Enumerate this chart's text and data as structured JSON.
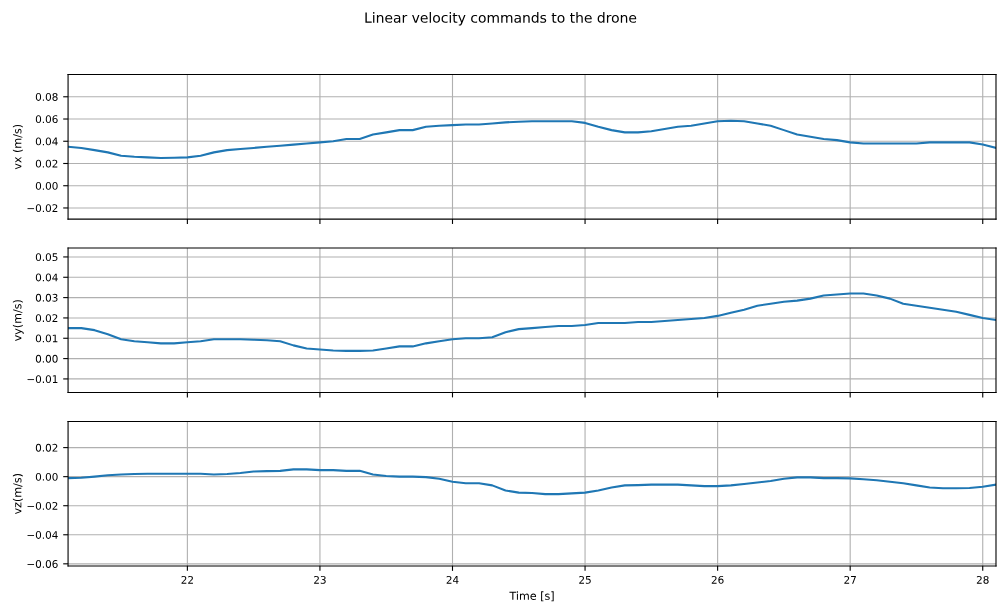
{
  "chart_data": [
    {
      "type": "line",
      "title": "Linear velocity commands to the drone",
      "ylabel": "vx (m/s)",
      "tick_labels": "y",
      "grid": true,
      "x": [
        21.1,
        21.2,
        21.3,
        21.4,
        21.5,
        21.6,
        21.7,
        21.8,
        21.9,
        22.0,
        22.1,
        22.2,
        22.3,
        22.4,
        22.5,
        22.6,
        22.7,
        22.8,
        22.9,
        23.0,
        23.1,
        23.2,
        23.3,
        23.4,
        23.5,
        23.6,
        23.7,
        23.8,
        23.9,
        24.0,
        24.1,
        24.2,
        24.3,
        24.4,
        24.5,
        24.6,
        24.7,
        24.8,
        24.9,
        25.0,
        25.1,
        25.2,
        25.3,
        25.4,
        25.5,
        25.6,
        25.7,
        25.8,
        25.9,
        26.0,
        26.1,
        26.2,
        26.3,
        26.4,
        26.5,
        26.6,
        26.7,
        26.8,
        26.9,
        27.0,
        27.1,
        27.2,
        27.3,
        27.4,
        27.5,
        27.6,
        27.7,
        27.8,
        27.9,
        28.0,
        28.1
      ],
      "series": [
        {
          "color": "#1f77b4",
          "values": [
            0.035,
            0.034,
            0.032,
            0.03,
            0.027,
            0.026,
            0.0255,
            0.025,
            0.0252,
            0.0255,
            0.027,
            0.03,
            0.032,
            0.033,
            0.034,
            0.035,
            0.036,
            0.037,
            0.038,
            0.039,
            0.04,
            0.042,
            0.042,
            0.046,
            0.048,
            0.05,
            0.05,
            0.053,
            0.054,
            0.0545,
            0.055,
            0.055,
            0.056,
            0.057,
            0.0575,
            0.058,
            0.058,
            0.058,
            0.058,
            0.0565,
            0.053,
            0.05,
            0.048,
            0.048,
            0.049,
            0.051,
            0.053,
            0.054,
            0.056,
            0.058,
            0.0585,
            0.058,
            0.056,
            0.054,
            0.05,
            0.046,
            0.044,
            0.042,
            0.041,
            0.039,
            0.038,
            0.038,
            0.038,
            0.038,
            0.038,
            0.039,
            0.039,
            0.039,
            0.039,
            0.037,
            0.034
          ]
        }
      ],
      "xlim": [
        21.1,
        28.1
      ],
      "xticks": [
        22,
        23,
        24,
        25,
        26,
        27,
        28
      ],
      "ylim": [
        -0.03,
        0.1
      ],
      "yticks": [
        {
          "value": -0.02,
          "label": "−0.02"
        },
        {
          "value": 0,
          "label": "0.00"
        },
        {
          "value": 0.02,
          "label": "0.02"
        },
        {
          "value": 0.04,
          "label": "0.04"
        },
        {
          "value": 0.06,
          "label": "0.06"
        },
        {
          "value": 0.08,
          "label": "0.08"
        }
      ]
    },
    {
      "type": "line",
      "ylabel": "vy(m/s)",
      "tick_labels": "y",
      "grid": true,
      "x": [
        21.1,
        21.2,
        21.3,
        21.4,
        21.5,
        21.6,
        21.7,
        21.8,
        21.9,
        22.0,
        22.1,
        22.2,
        22.3,
        22.4,
        22.5,
        22.6,
        22.7,
        22.8,
        22.9,
        23.0,
        23.1,
        23.2,
        23.3,
        23.4,
        23.5,
        23.6,
        23.7,
        23.8,
        23.9,
        24.0,
        24.1,
        24.2,
        24.3,
        24.4,
        24.5,
        24.6,
        24.7,
        24.8,
        24.9,
        25.0,
        25.1,
        25.2,
        25.3,
        25.4,
        25.5,
        25.6,
        25.7,
        25.8,
        25.9,
        26.0,
        26.1,
        26.2,
        26.3,
        26.4,
        26.5,
        26.6,
        26.7,
        26.8,
        26.9,
        27.0,
        27.1,
        27.2,
        27.3,
        27.4,
        27.5,
        27.6,
        27.7,
        27.8,
        27.9,
        28.0,
        28.1
      ],
      "series": [
        {
          "color": "#1f77b4",
          "values": [
            0.015,
            0.015,
            0.014,
            0.012,
            0.0095,
            0.0085,
            0.008,
            0.0075,
            0.0075,
            0.008,
            0.0085,
            0.0095,
            0.0095,
            0.0095,
            0.0093,
            0.009,
            0.0085,
            0.0065,
            0.005,
            0.0045,
            0.004,
            0.0038,
            0.0038,
            0.004,
            0.005,
            0.006,
            0.006,
            0.0075,
            0.0085,
            0.0095,
            0.01,
            0.01,
            0.0105,
            0.013,
            0.0145,
            0.015,
            0.0155,
            0.016,
            0.016,
            0.0165,
            0.0175,
            0.0175,
            0.0175,
            0.018,
            0.018,
            0.0185,
            0.019,
            0.0195,
            0.02,
            0.021,
            0.0225,
            0.024,
            0.026,
            0.027,
            0.028,
            0.0285,
            0.0295,
            0.031,
            0.0315,
            0.032,
            0.032,
            0.031,
            0.0295,
            0.027,
            0.026,
            0.025,
            0.024,
            0.023,
            0.0215,
            0.02,
            0.019
          ]
        }
      ],
      "xlim": [
        21.1,
        28.1
      ],
      "xticks": [
        22,
        23,
        24,
        25,
        26,
        27,
        28
      ],
      "ylim": [
        -0.0167,
        0.0544
      ],
      "yticks": [
        {
          "value": -0.01,
          "label": "−0.01"
        },
        {
          "value": 0,
          "label": "0.00"
        },
        {
          "value": 0.01,
          "label": "0.01"
        },
        {
          "value": 0.02,
          "label": "0.02"
        },
        {
          "value": 0.03,
          "label": "0.03"
        },
        {
          "value": 0.04,
          "label": "0.04"
        },
        {
          "value": 0.05,
          "label": "0.05"
        }
      ]
    },
    {
      "type": "line",
      "xlabel": "Time [s]",
      "ylabel": "vz(m/s)",
      "grid": true,
      "x": [
        21.1,
        21.2,
        21.3,
        21.4,
        21.5,
        21.6,
        21.7,
        21.8,
        21.9,
        22.0,
        22.1,
        22.2,
        22.3,
        22.4,
        22.5,
        22.6,
        22.7,
        22.8,
        22.9,
        23.0,
        23.1,
        23.2,
        23.3,
        23.4,
        23.5,
        23.6,
        23.7,
        23.8,
        23.9,
        24.0,
        24.1,
        24.2,
        24.3,
        24.4,
        24.5,
        24.6,
        24.7,
        24.8,
        24.9,
        25.0,
        25.1,
        25.2,
        25.3,
        25.4,
        25.5,
        25.6,
        25.7,
        25.8,
        25.9,
        26.0,
        26.1,
        26.2,
        26.3,
        26.4,
        26.5,
        26.6,
        26.7,
        26.8,
        26.9,
        27.0,
        27.1,
        27.2,
        27.3,
        27.4,
        27.5,
        27.6,
        27.7,
        27.8,
        27.9,
        28.0,
        28.1
      ],
      "series": [
        {
          "color": "#1f77b4",
          "values": [
            -0.001,
            -0.0008,
            0,
            0.001,
            0.0015,
            0.0018,
            0.002,
            0.002,
            0.002,
            0.002,
            0.002,
            0.0015,
            0.0018,
            0.0025,
            0.0035,
            0.0038,
            0.004,
            0.005,
            0.005,
            0.0045,
            0.0045,
            0.004,
            0.004,
            0.0015,
            0.0005,
            0,
            0,
            -0.0003,
            -0.0015,
            -0.0035,
            -0.0045,
            -0.0045,
            -0.006,
            -0.0095,
            -0.011,
            -0.0112,
            -0.012,
            -0.012,
            -0.0115,
            -0.011,
            -0.0095,
            -0.0075,
            -0.006,
            -0.0058,
            -0.0055,
            -0.0055,
            -0.0055,
            -0.006,
            -0.0065,
            -0.0065,
            -0.006,
            -0.005,
            -0.004,
            -0.003,
            -0.0015,
            -0.0005,
            -0.0005,
            -0.001,
            -0.001,
            -0.0012,
            -0.0018,
            -0.0025,
            -0.0035,
            -0.0045,
            -0.006,
            -0.0075,
            -0.008,
            -0.008,
            -0.0078,
            -0.007,
            -0.0055
          ]
        }
      ],
      "xlim": [
        21.1,
        28.1
      ],
      "xticks": [
        22,
        23,
        24,
        25,
        26,
        27,
        28
      ],
      "ylim": [
        -0.0615,
        0.038
      ],
      "yticks": [
        {
          "value": -0.06,
          "label": "−0.06"
        },
        {
          "value": -0.04,
          "label": "−0.04"
        },
        {
          "value": -0.02,
          "label": "−0.02"
        },
        {
          "value": 0,
          "label": "0.00"
        },
        {
          "value": 0.02,
          "label": "0.02"
        }
      ]
    }
  ]
}
